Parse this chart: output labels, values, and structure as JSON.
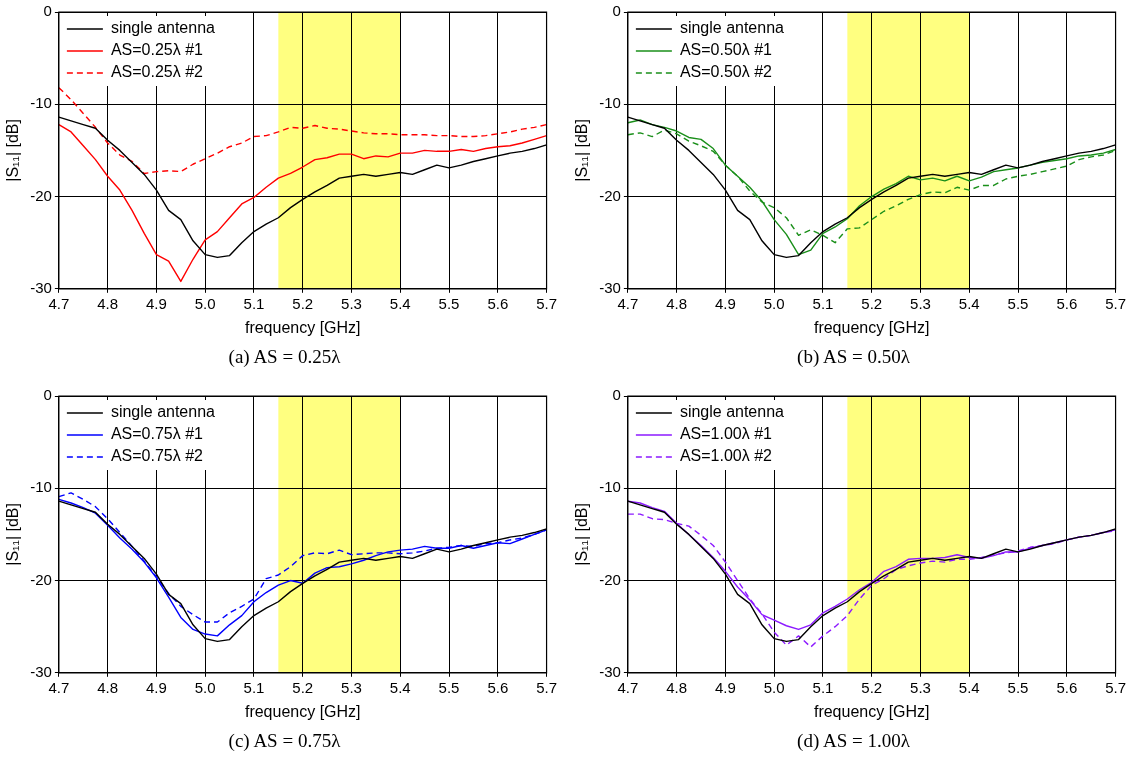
{
  "chart_data": [
    {
      "type": "line",
      "xlabel": "frequency [GHz]",
      "ylabel": "|S₁₁| [dB]",
      "annotations": [
        "(a)  AS = 0.25λ"
      ],
      "legend": "top left",
      "grid": true,
      "xlim": [
        4.7,
        5.7
      ],
      "ylim": [
        -30,
        0
      ],
      "xticks": [
        {
          "value": 4.7,
          "label": "4.7"
        },
        {
          "value": 4.8,
          "label": "4.8"
        },
        {
          "value": 4.9,
          "label": "4.9"
        },
        {
          "value": 5,
          "label": "5.0"
        },
        {
          "value": 5.1,
          "label": "5.1"
        },
        {
          "value": 5.2,
          "label": "5.2"
        },
        {
          "value": 5.3,
          "label": "5.3"
        },
        {
          "value": 5.4,
          "label": "5.4"
        },
        {
          "value": 5.5,
          "label": "5.5"
        },
        {
          "value": 5.6,
          "label": "5.6"
        },
        {
          "value": 5.7,
          "label": "5.7"
        }
      ],
      "yticks": [
        0,
        -10,
        -20,
        -30
      ],
      "bands": [
        {
          "axis": "x",
          "from": 5.15,
          "to": 5.4,
          "color": "#ffff80"
        }
      ],
      "x": [
        4.7,
        4.725,
        4.75,
        4.775,
        4.8,
        4.825,
        4.85,
        4.875,
        4.9,
        4.925,
        4.95,
        4.975,
        5.0,
        5.025,
        5.05,
        5.075,
        5.1,
        5.125,
        5.15,
        5.175,
        5.2,
        5.225,
        5.25,
        5.275,
        5.3,
        5.325,
        5.35,
        5.375,
        5.4,
        5.425,
        5.45,
        5.475,
        5.5,
        5.525,
        5.55,
        5.575,
        5.6,
        5.625,
        5.65,
        5.675,
        5.7
      ],
      "series": [
        {
          "name": "single antenna",
          "color": "#000000",
          "line_style": "solid",
          "values": [
            -11.4,
            -11.8,
            -12.2,
            -12.6,
            -13.9,
            -15.0,
            -16.3,
            -17.6,
            -19.3,
            -21.5,
            -22.5,
            -24.8,
            -26.3,
            -26.6,
            -26.4,
            -25.0,
            -23.8,
            -23.0,
            -22.3,
            -21.2,
            -20.3,
            -19.5,
            -18.8,
            -18.0,
            -17.8,
            -17.6,
            -17.8,
            -17.6,
            -17.4,
            -17.6,
            -17.1,
            -16.6,
            -16.9,
            -16.6,
            -16.2,
            -15.9,
            -15.6,
            -15.3,
            -15.1,
            -14.8,
            -14.4
          ]
        },
        {
          "name": "AS=0.25λ #1",
          "color": "#ff0000",
          "line_style": "solid",
          "values": [
            -12.2,
            -13.0,
            -14.5,
            -16.0,
            -17.8,
            -19.3,
            -21.5,
            -24.0,
            -26.3,
            -27.0,
            -29.2,
            -26.8,
            -24.7,
            -23.8,
            -22.3,
            -20.8,
            -20.1,
            -19.0,
            -18.0,
            -17.5,
            -16.8,
            -16.0,
            -15.8,
            -15.4,
            -15.4,
            -15.9,
            -15.6,
            -15.7,
            -15.3,
            -15.3,
            -15.0,
            -15.1,
            -15.1,
            -14.9,
            -15.1,
            -14.8,
            -14.6,
            -14.5,
            -14.2,
            -13.8,
            -13.4
          ]
        },
        {
          "name": "AS=0.25λ #2",
          "color": "#ff0000",
          "line_style": "dashed",
          "values": [
            -8.2,
            -9.5,
            -11.0,
            -12.5,
            -14.2,
            -15.5,
            -16.2,
            -17.5,
            -17.3,
            -17.2,
            -17.3,
            -16.5,
            -15.9,
            -15.3,
            -14.6,
            -14.2,
            -13.5,
            -13.4,
            -13.0,
            -12.5,
            -12.6,
            -12.3,
            -12.6,
            -12.7,
            -12.9,
            -13.1,
            -13.2,
            -13.2,
            -13.3,
            -13.3,
            -13.3,
            -13.4,
            -13.4,
            -13.5,
            -13.5,
            -13.4,
            -13.2,
            -13.0,
            -12.7,
            -12.5,
            -12.2
          ]
        }
      ]
    },
    {
      "type": "line",
      "xlabel": "frequency [GHz]",
      "ylabel": "|S₁₁| [dB]",
      "annotations": [
        "(b)  AS = 0.50λ"
      ],
      "legend": "top left",
      "grid": true,
      "xlim": [
        4.7,
        5.7
      ],
      "ylim": [
        -30,
        0
      ],
      "xticks": [
        {
          "value": 4.7,
          "label": "4.7"
        },
        {
          "value": 4.8,
          "label": "4.8"
        },
        {
          "value": 4.9,
          "label": "4.9"
        },
        {
          "value": 5,
          "label": "5.0"
        },
        {
          "value": 5.1,
          "label": "5.1"
        },
        {
          "value": 5.2,
          "label": "5.2"
        },
        {
          "value": 5.3,
          "label": "5.3"
        },
        {
          "value": 5.4,
          "label": "5.4"
        },
        {
          "value": 5.5,
          "label": "5.5"
        },
        {
          "value": 5.6,
          "label": "5.6"
        },
        {
          "value": 5.7,
          "label": "5.7"
        }
      ],
      "yticks": [
        0,
        -10,
        -20,
        -30
      ],
      "bands": [
        {
          "axis": "x",
          "from": 5.15,
          "to": 5.4,
          "color": "#ffff80"
        }
      ],
      "x": [
        4.7,
        4.725,
        4.75,
        4.775,
        4.8,
        4.825,
        4.85,
        4.875,
        4.9,
        4.925,
        4.95,
        4.975,
        5.0,
        5.025,
        5.05,
        5.075,
        5.1,
        5.125,
        5.15,
        5.175,
        5.2,
        5.225,
        5.25,
        5.275,
        5.3,
        5.325,
        5.35,
        5.375,
        5.4,
        5.425,
        5.45,
        5.475,
        5.5,
        5.525,
        5.55,
        5.575,
        5.6,
        5.625,
        5.65,
        5.675,
        5.7
      ],
      "series": [
        {
          "name": "single antenna",
          "color": "#000000",
          "line_style": "solid",
          "values": [
            -11.4,
            -11.8,
            -12.2,
            -12.6,
            -13.9,
            -15.0,
            -16.3,
            -17.6,
            -19.3,
            -21.5,
            -22.5,
            -24.8,
            -26.3,
            -26.6,
            -26.4,
            -25.0,
            -23.8,
            -23.0,
            -22.3,
            -21.2,
            -20.3,
            -19.5,
            -18.8,
            -18.0,
            -17.8,
            -17.6,
            -17.8,
            -17.6,
            -17.4,
            -17.6,
            -17.1,
            -16.6,
            -16.9,
            -16.6,
            -16.2,
            -15.9,
            -15.6,
            -15.3,
            -15.1,
            -14.8,
            -14.4
          ]
        },
        {
          "name": "AS=0.50λ #1",
          "color": "#1a8f1a",
          "line_style": "solid",
          "values": [
            -12.0,
            -11.7,
            -12.2,
            -12.5,
            -12.9,
            -13.6,
            -13.8,
            -14.8,
            -16.6,
            -17.8,
            -19.0,
            -20.5,
            -22.5,
            -24.1,
            -26.3,
            -25.8,
            -24.0,
            -23.3,
            -22.4,
            -21.0,
            -20.0,
            -19.2,
            -18.6,
            -17.8,
            -18.2,
            -18.0,
            -18.3,
            -17.8,
            -18.3,
            -17.9,
            -17.3,
            -17.1,
            -16.9,
            -16.6,
            -16.3,
            -16.1,
            -15.9,
            -15.6,
            -15.5,
            -15.3,
            -14.9
          ]
        },
        {
          "name": "AS=0.50λ #2",
          "color": "#1a8f1a",
          "line_style": "dashed",
          "values": [
            -13.3,
            -13.1,
            -13.5,
            -12.8,
            -13.2,
            -14.0,
            -14.5,
            -15.1,
            -16.6,
            -17.8,
            -19.4,
            -20.6,
            -21.2,
            -22.3,
            -24.2,
            -23.6,
            -24.2,
            -25.0,
            -23.5,
            -23.4,
            -22.5,
            -21.6,
            -21.0,
            -20.3,
            -19.8,
            -19.5,
            -19.6,
            -19.0,
            -19.3,
            -18.8,
            -18.8,
            -18.1,
            -17.8,
            -17.6,
            -17.3,
            -17.0,
            -16.7,
            -16.0,
            -15.7,
            -15.5,
            -15.0
          ]
        }
      ]
    },
    {
      "type": "line",
      "xlabel": "frequency [GHz]",
      "ylabel": "|S₁₁| [dB]",
      "annotations": [
        "(c)  AS = 0.75λ"
      ],
      "legend": "top left",
      "grid": true,
      "xlim": [
        4.7,
        5.7
      ],
      "ylim": [
        -30,
        0
      ],
      "xticks": [
        {
          "value": 4.7,
          "label": "4.7"
        },
        {
          "value": 4.8,
          "label": "4.8"
        },
        {
          "value": 4.9,
          "label": "4.9"
        },
        {
          "value": 5,
          "label": "5.0"
        },
        {
          "value": 5.1,
          "label": "5.1"
        },
        {
          "value": 5.2,
          "label": "5.2"
        },
        {
          "value": 5.3,
          "label": "5.3"
        },
        {
          "value": 5.4,
          "label": "5.4"
        },
        {
          "value": 5.5,
          "label": "5.5"
        },
        {
          "value": 5.6,
          "label": "5.6"
        },
        {
          "value": 5.7,
          "label": "5.7"
        }
      ],
      "yticks": [
        0,
        -10,
        -20,
        -30
      ],
      "bands": [
        {
          "axis": "x",
          "from": 5.15,
          "to": 5.4,
          "color": "#ffff80"
        }
      ],
      "x": [
        4.7,
        4.725,
        4.75,
        4.775,
        4.8,
        4.825,
        4.85,
        4.875,
        4.9,
        4.925,
        4.95,
        4.975,
        5.0,
        5.025,
        5.05,
        5.075,
        5.1,
        5.125,
        5.15,
        5.175,
        5.2,
        5.225,
        5.25,
        5.275,
        5.3,
        5.325,
        5.35,
        5.375,
        5.4,
        5.425,
        5.45,
        5.475,
        5.5,
        5.525,
        5.55,
        5.575,
        5.6,
        5.625,
        5.65,
        5.675,
        5.7
      ],
      "series": [
        {
          "name": "single antenna",
          "color": "#000000",
          "line_style": "solid",
          "values": [
            -11.4,
            -11.8,
            -12.2,
            -12.6,
            -13.9,
            -15.0,
            -16.3,
            -17.6,
            -19.3,
            -21.5,
            -22.5,
            -24.8,
            -26.3,
            -26.6,
            -26.4,
            -25.0,
            -23.8,
            -23.0,
            -22.3,
            -21.2,
            -20.3,
            -19.5,
            -18.8,
            -18.0,
            -17.8,
            -17.6,
            -17.8,
            -17.6,
            -17.4,
            -17.6,
            -17.1,
            -16.6,
            -16.9,
            -16.6,
            -16.2,
            -15.9,
            -15.6,
            -15.3,
            -15.1,
            -14.8,
            -14.4
          ]
        },
        {
          "name": "AS=0.75λ #1",
          "color": "#0000ff",
          "line_style": "solid",
          "values": [
            -11.2,
            -11.6,
            -12.1,
            -12.7,
            -14.0,
            -15.4,
            -16.6,
            -18.0,
            -19.7,
            -21.8,
            -24.0,
            -25.3,
            -25.8,
            -26.0,
            -24.8,
            -23.8,
            -22.3,
            -21.3,
            -20.5,
            -20.0,
            -20.3,
            -19.2,
            -18.6,
            -18.5,
            -18.2,
            -17.8,
            -17.3,
            -16.9,
            -16.7,
            -16.6,
            -16.3,
            -16.5,
            -16.5,
            -16.2,
            -16.5,
            -16.2,
            -15.9,
            -16.0,
            -15.5,
            -15.0,
            -14.5
          ]
        },
        {
          "name": "AS=0.75λ #2",
          "color": "#0000ff",
          "line_style": "dashed",
          "values": [
            -10.9,
            -10.5,
            -11.2,
            -12.0,
            -13.3,
            -14.8,
            -16.3,
            -17.9,
            -19.6,
            -21.4,
            -22.8,
            -23.7,
            -24.5,
            -24.5,
            -23.5,
            -22.8,
            -22.0,
            -19.8,
            -19.4,
            -18.5,
            -17.3,
            -17.0,
            -17.1,
            -16.7,
            -17.2,
            -17.1,
            -17.0,
            -17.0,
            -17.1,
            -17.0,
            -16.8,
            -16.5,
            -16.4,
            -16.2,
            -16.3,
            -16.0,
            -15.9,
            -15.6,
            -15.4,
            -15.0,
            -14.5
          ]
        }
      ]
    },
    {
      "type": "line",
      "xlabel": "frequency [GHz]",
      "ylabel": "|S₁₁| [dB]",
      "annotations": [
        "(d)  AS = 1.00λ"
      ],
      "legend": "top left",
      "grid": true,
      "xlim": [
        4.7,
        5.7
      ],
      "ylim": [
        -30,
        0
      ],
      "xticks": [
        {
          "value": 4.7,
          "label": "4.7"
        },
        {
          "value": 4.8,
          "label": "4.8"
        },
        {
          "value": 4.9,
          "label": "4.9"
        },
        {
          "value": 5,
          "label": "5.0"
        },
        {
          "value": 5.1,
          "label": "5.1"
        },
        {
          "value": 5.2,
          "label": "5.2"
        },
        {
          "value": 5.3,
          "label": "5.3"
        },
        {
          "value": 5.4,
          "label": "5.4"
        },
        {
          "value": 5.5,
          "label": "5.5"
        },
        {
          "value": 5.6,
          "label": "5.6"
        },
        {
          "value": 5.7,
          "label": "5.7"
        }
      ],
      "yticks": [
        0,
        -10,
        -20,
        -30
      ],
      "bands": [
        {
          "axis": "x",
          "from": 5.15,
          "to": 5.4,
          "color": "#ffff80"
        }
      ],
      "x": [
        4.7,
        4.725,
        4.75,
        4.775,
        4.8,
        4.825,
        4.85,
        4.875,
        4.9,
        4.925,
        4.95,
        4.975,
        5.0,
        5.025,
        5.05,
        5.075,
        5.1,
        5.125,
        5.15,
        5.175,
        5.2,
        5.225,
        5.25,
        5.275,
        5.3,
        5.325,
        5.35,
        5.375,
        5.4,
        5.425,
        5.45,
        5.475,
        5.5,
        5.525,
        5.55,
        5.575,
        5.6,
        5.625,
        5.65,
        5.675,
        5.7
      ],
      "series": [
        {
          "name": "single antenna",
          "color": "#000000",
          "line_style": "solid",
          "values": [
            -11.4,
            -11.8,
            -12.2,
            -12.6,
            -13.9,
            -15.0,
            -16.3,
            -17.6,
            -19.3,
            -21.5,
            -22.5,
            -24.8,
            -26.3,
            -26.6,
            -26.4,
            -25.0,
            -23.8,
            -23.0,
            -22.3,
            -21.2,
            -20.3,
            -19.5,
            -18.8,
            -18.0,
            -17.8,
            -17.6,
            -17.8,
            -17.6,
            -17.4,
            -17.6,
            -17.1,
            -16.6,
            -16.9,
            -16.6,
            -16.2,
            -15.9,
            -15.6,
            -15.3,
            -15.1,
            -14.8,
            -14.4
          ]
        },
        {
          "name": "AS=1.00λ #1",
          "color": "#8c1aff",
          "line_style": "solid",
          "values": [
            -11.4,
            -11.6,
            -12.1,
            -12.5,
            -13.8,
            -15.0,
            -16.2,
            -17.5,
            -19.0,
            -20.7,
            -22.1,
            -23.7,
            -24.3,
            -24.9,
            -25.3,
            -24.8,
            -23.5,
            -22.8,
            -22.0,
            -21.0,
            -20.2,
            -19.0,
            -18.5,
            -17.7,
            -17.6,
            -17.6,
            -17.5,
            -17.2,
            -17.5,
            -17.6,
            -17.3,
            -16.9,
            -16.9,
            -16.5,
            -16.2,
            -15.9,
            -15.6,
            -15.3,
            -15.1,
            -14.8,
            -14.5
          ]
        },
        {
          "name": "AS=1.00λ #2",
          "color": "#8c1aff",
          "line_style": "dashed",
          "values": [
            -12.8,
            -12.8,
            -13.3,
            -13.4,
            -13.8,
            -14.1,
            -15.1,
            -16.2,
            -18.0,
            -20.0,
            -22.0,
            -23.6,
            -25.6,
            -27.0,
            -26.0,
            -27.2,
            -26.0,
            -25.0,
            -23.8,
            -22.0,
            -20.5,
            -19.8,
            -18.8,
            -18.4,
            -18.1,
            -17.9,
            -18.0,
            -17.7,
            -17.7,
            -17.5,
            -17.2,
            -17.0,
            -16.8,
            -16.4,
            -16.2,
            -16.0,
            -15.6,
            -15.3,
            -15.1,
            -14.8,
            -14.6
          ]
        }
      ]
    }
  ]
}
